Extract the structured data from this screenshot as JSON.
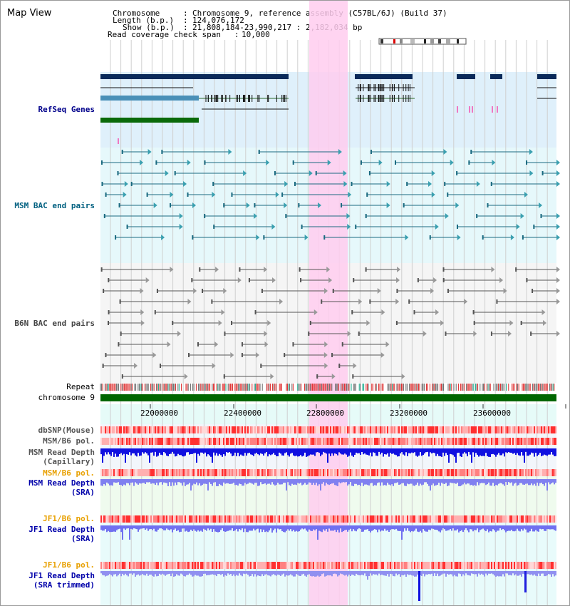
{
  "header": {
    "title": "Map View",
    "rows": [
      {
        "key": "Chromosome",
        "value": "Chromosome 9, reference assembly (C57BL/6J) (Build 37)"
      },
      {
        "key": "Length (b.p.)",
        "value": "124,076,172"
      },
      {
        "key": "Show (b.p.)",
        "value": "21,808,184-23,990,217 : 2,182,034 bp"
      },
      {
        "key": "Read coverage check span",
        "value": "10,000"
      }
    ]
  },
  "tracks": {
    "refseq": "RefSeq Genes",
    "msm_bac": "MSM BAC end pairs",
    "b6n_bac": "B6N BAC end pairs",
    "repeat": "Repeat",
    "chromosome": "chromosome 9",
    "dbsnp": "dbSNP(Mouse)",
    "msm_b6_pol_1": "MSM/B6 pol.",
    "msm_read_depth_cap_1": "MSM Read Depth",
    "msm_read_depth_cap_2": "(Capillary)",
    "msm_b6_pol_2": "MSM/B6 pol.",
    "msm_read_depth_sra_1": "MSM Read Depth",
    "msm_read_depth_sra_2": "(SRA)",
    "jf1_b6_pol_1": "JF1/B6 pol.",
    "jf1_read_depth_sra_1": "JF1 Read Depth",
    "jf1_read_depth_sra_2": "(SRA)",
    "jf1_b6_pol_2": "JF1/B6 pol.",
    "jf1_read_depth_trim_1": "JF1 Read Depth",
    "jf1_read_depth_trim_2": "(SRA trimmed)"
  },
  "axis": {
    "ticks": [
      "22000000",
      "22400000",
      "22800000",
      "23200000",
      "23600000"
    ]
  },
  "colors": {
    "refseq_label": "#00008b",
    "msm_label": "#006080",
    "pol_orange": "#e8a000",
    "sra_blue": "#0000aa",
    "highlight": "#ffccee"
  }
}
